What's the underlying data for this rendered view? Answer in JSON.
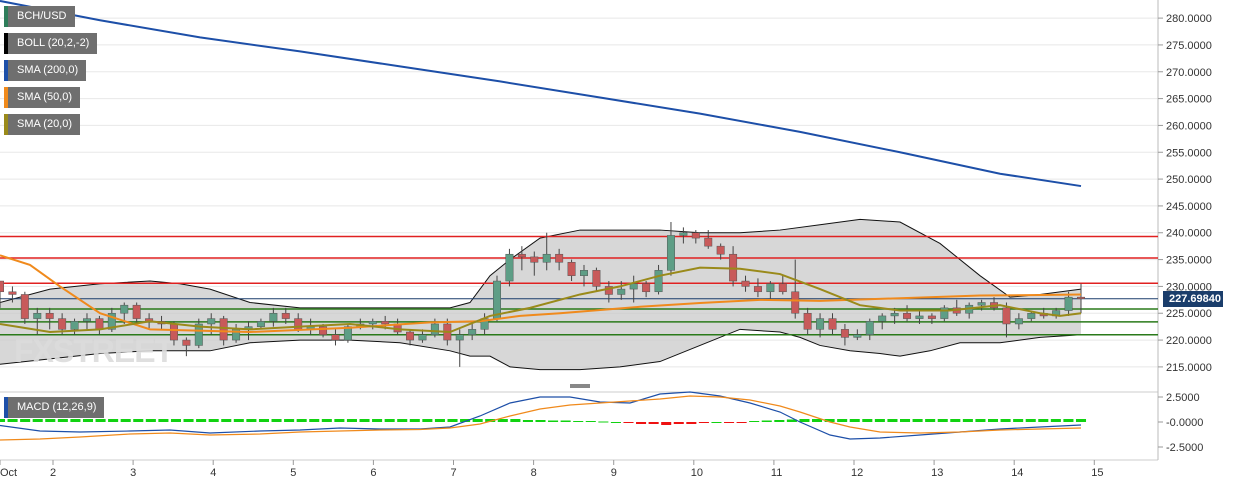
{
  "legend": [
    {
      "label": "BCH/USD",
      "color": "#2e7d5a"
    },
    {
      "label": "BOLL (20,2,-2)",
      "color": "#000000"
    },
    {
      "label": "SMA (200,0)",
      "color": "#1d4fa8"
    },
    {
      "label": "SMA (50,0)",
      "color": "#f08a1c"
    },
    {
      "label": "SMA (20,0)",
      "color": "#9a8a1a"
    }
  ],
  "macd_label": "MACD (12,26,9)",
  "watermark": "FXSTREET",
  "current_price": "227.69840",
  "x_labels": [
    "Oct",
    "2",
    "3",
    "4",
    "5",
    "6",
    "7",
    "8",
    "9",
    "10",
    "11",
    "12",
    "13",
    "14",
    "15"
  ],
  "y_labels": [
    "280.0000",
    "275.0000",
    "270.0000",
    "265.0000",
    "260.0000",
    "255.0000",
    "250.0000",
    "245.0000",
    "240.0000",
    "235.0000",
    "230.0000",
    "225.0000",
    "220.0000",
    "215.0000"
  ],
  "macd_y_labels": [
    "2.5000",
    "-0.0000",
    "-2.5000"
  ],
  "chart_data": {
    "type": "candlestick",
    "title": "BCH/USD",
    "ylim": [
      212,
      283
    ],
    "macd_ylim": [
      -3.6,
      3.0
    ],
    "colors": {
      "up": "#5e9e86",
      "down": "#c85a5a",
      "sma200": "#1d4fa8",
      "sma50": "#f08a1c",
      "sma20": "#9a8a1a",
      "boll_fill": "#c9c9c9",
      "boll_line": "#111111",
      "resistance": "#e02020",
      "support": "#2a7a1a",
      "macd_line": "#1d4fa8",
      "signal_line": "#f08a1c",
      "hist_up": "#11d211",
      "hist_down": "#ee1111"
    },
    "horizontal_levels": {
      "resistance": [
        239.3,
        235.3,
        230.6
      ],
      "support": [
        225.8,
        223.4,
        221.0
      ],
      "current": 227.6984
    },
    "candles": [
      [
        231,
        231,
        226,
        229
      ],
      [
        229,
        230,
        227,
        228.5
      ],
      [
        228.5,
        229,
        223,
        224
      ],
      [
        224,
        226,
        221,
        225
      ],
      [
        225,
        226,
        222,
        224
      ],
      [
        224,
        225,
        221,
        222
      ],
      [
        222,
        224,
        221,
        223.5
      ],
      [
        223.5,
        225,
        222,
        224
      ],
      [
        224,
        224.5,
        221,
        222
      ],
      [
        222,
        226,
        221.5,
        225
      ],
      [
        225,
        227,
        223,
        226.5
      ],
      [
        226.5,
        227,
        223,
        224
      ],
      [
        224,
        225,
        222,
        223.5
      ],
      [
        223.5,
        224.5,
        222,
        223
      ],
      [
        223,
        223.5,
        219,
        220
      ],
      [
        220,
        220.5,
        217,
        219
      ],
      [
        219,
        224,
        218.5,
        223
      ],
      [
        223,
        225,
        221,
        224
      ],
      [
        224,
        224.5,
        219,
        220
      ],
      [
        220,
        223,
        219.5,
        222
      ],
      [
        222,
        223.5,
        220,
        222.5
      ],
      [
        222.5,
        224,
        222,
        223.5
      ],
      [
        223.5,
        226,
        222.5,
        225
      ],
      [
        225,
        226,
        223,
        224
      ],
      [
        224,
        225,
        221.5,
        222
      ],
      [
        222,
        224,
        221,
        222.5
      ],
      [
        222.5,
        223,
        220.5,
        221
      ],
      [
        221,
        222,
        219,
        220
      ],
      [
        220,
        223,
        219.5,
        222.5
      ],
      [
        222.5,
        224,
        222,
        223
      ],
      [
        223,
        224,
        222,
        223.5
      ],
      [
        223.5,
        224.5,
        222,
        223
      ],
      [
        223,
        224,
        221,
        221.5
      ],
      [
        221.5,
        222,
        219,
        220
      ],
      [
        220,
        222,
        219.5,
        221
      ],
      [
        221,
        224,
        220.5,
        223
      ],
      [
        223,
        224,
        219,
        220
      ],
      [
        220,
        222,
        215,
        221
      ],
      [
        221,
        223,
        220,
        222
      ],
      [
        222,
        225,
        221,
        224
      ],
      [
        224,
        232,
        223.5,
        231
      ],
      [
        231,
        237,
        230,
        236
      ],
      [
        236,
        237.5,
        233,
        235.5
      ],
      [
        235.5,
        236.5,
        232,
        234.5
      ],
      [
        234.5,
        240,
        233,
        236
      ],
      [
        236,
        237,
        233,
        234.5
      ],
      [
        234.5,
        235,
        231,
        232
      ],
      [
        232,
        234,
        230,
        233
      ],
      [
        233,
        233.5,
        229,
        230
      ],
      [
        230,
        231,
        227,
        228.5
      ],
      [
        228.5,
        231,
        227.5,
        229.5
      ],
      [
        229.5,
        232,
        227,
        230.5
      ],
      [
        230.5,
        231,
        228,
        229
      ],
      [
        229,
        234,
        228.5,
        233
      ],
      [
        233,
        242,
        232,
        239.5
      ],
      [
        239.5,
        241,
        238,
        240
      ],
      [
        240,
        240.5,
        238,
        239
      ],
      [
        239,
        240.5,
        237,
        237.5
      ],
      [
        237.5,
        238,
        235,
        236
      ],
      [
        236,
        237.5,
        230,
        231
      ],
      [
        231,
        232,
        229,
        230
      ],
      [
        230,
        231.5,
        228,
        229
      ],
      [
        229,
        231,
        227.5,
        230.5
      ],
      [
        230.5,
        232,
        228.5,
        229
      ],
      [
        229,
        235,
        224,
        225
      ],
      [
        225,
        226,
        221,
        222
      ],
      [
        222,
        225,
        220.5,
        224
      ],
      [
        224,
        225,
        221,
        222
      ],
      [
        222,
        223,
        219,
        220.5
      ],
      [
        220.5,
        222,
        220,
        221
      ],
      [
        221,
        224,
        220,
        223.5
      ],
      [
        223.5,
        225,
        222,
        224.5
      ],
      [
        224.5,
        226,
        223,
        225
      ],
      [
        225,
        226.5,
        223.5,
        224
      ],
      [
        224,
        225.5,
        223,
        224.5
      ],
      [
        224.5,
        225,
        223,
        224
      ],
      [
        224,
        226.5,
        223.5,
        226
      ],
      [
        226,
        227.5,
        224.5,
        225
      ],
      [
        225,
        227,
        224,
        226.5
      ],
      [
        226.5,
        227.5,
        225.5,
        227
      ],
      [
        227,
        228,
        225.5,
        226
      ],
      [
        226,
        227,
        220.5,
        223
      ],
      [
        223,
        225,
        222,
        224
      ],
      [
        224,
        225.5,
        223.5,
        225
      ],
      [
        225,
        226,
        224,
        224.5
      ],
      [
        224.5,
        226,
        224,
        225.5
      ],
      [
        225.5,
        229,
        224.5,
        228
      ],
      [
        228,
        230.5,
        225,
        227.7
      ]
    ],
    "sma200": [
      [
        0,
        283.2
      ],
      [
        100,
        279.6
      ],
      [
        200,
        276.4
      ],
      [
        300,
        273.8
      ],
      [
        400,
        271.0
      ],
      [
        500,
        268.2
      ],
      [
        600,
        265.2
      ],
      [
        700,
        262.2
      ],
      [
        800,
        258.8
      ],
      [
        900,
        255.0
      ],
      [
        1000,
        251.0
      ],
      [
        1081,
        248.7
      ]
    ],
    "sma50": [
      [
        0,
        235.8
      ],
      [
        30,
        234.0
      ],
      [
        60,
        230.0
      ],
      [
        100,
        225.0
      ],
      [
        150,
        222.0
      ],
      [
        250,
        221.5
      ],
      [
        350,
        222.3
      ],
      [
        430,
        223.3
      ],
      [
        480,
        223.5
      ],
      [
        520,
        224.5
      ],
      [
        560,
        225.0
      ],
      [
        640,
        226.2
      ],
      [
        700,
        226.9
      ],
      [
        760,
        227.5
      ],
      [
        820,
        227.3
      ],
      [
        900,
        227.8
      ],
      [
        980,
        228.3
      ],
      [
        1040,
        228.4
      ],
      [
        1081,
        228.5
      ]
    ],
    "sma20": [
      [
        0,
        223.0
      ],
      [
        50,
        221.5
      ],
      [
        100,
        222.0
      ],
      [
        150,
        223.5
      ],
      [
        200,
        222.5
      ],
      [
        250,
        222.0
      ],
      [
        300,
        222.5
      ],
      [
        350,
        223.0
      ],
      [
        400,
        222.0
      ],
      [
        450,
        221.5
      ],
      [
        490,
        224.5
      ],
      [
        530,
        226.0
      ],
      [
        580,
        228.5
      ],
      [
        620,
        230.0
      ],
      [
        660,
        232.0
      ],
      [
        700,
        233.5
      ],
      [
        740,
        233.3
      ],
      [
        780,
        232.3
      ],
      [
        820,
        229.5
      ],
      [
        860,
        226.5
      ],
      [
        900,
        225.5
      ],
      [
        950,
        225.5
      ],
      [
        1000,
        226.5
      ],
      [
        1040,
        225.0
      ],
      [
        1060,
        224.5
      ],
      [
        1081,
        225.0
      ]
    ],
    "boll_upper": [
      [
        0,
        227.0
      ],
      [
        50,
        229.5
      ],
      [
        100,
        230.5
      ],
      [
        150,
        231.0
      ],
      [
        180,
        230.5
      ],
      [
        210,
        229.5
      ],
      [
        250,
        227.0
      ],
      [
        300,
        226.0
      ],
      [
        350,
        226.0
      ],
      [
        400,
        226.0
      ],
      [
        450,
        226.0
      ],
      [
        470,
        227.0
      ],
      [
        490,
        232.0
      ],
      [
        510,
        235.0
      ],
      [
        540,
        239.0
      ],
      [
        580,
        240.5
      ],
      [
        620,
        240.5
      ],
      [
        660,
        240.5
      ],
      [
        700,
        240.0
      ],
      [
        740,
        240.0
      ],
      [
        780,
        240.5
      ],
      [
        820,
        241.5
      ],
      [
        860,
        242.5
      ],
      [
        900,
        242.0
      ],
      [
        940,
        238.0
      ],
      [
        980,
        232.0
      ],
      [
        1010,
        228.0
      ],
      [
        1040,
        228.5
      ],
      [
        1081,
        229.5
      ]
    ],
    "boll_lower": [
      [
        0,
        215.5
      ],
      [
        50,
        216.5
      ],
      [
        100,
        217.5
      ],
      [
        150,
        218.0
      ],
      [
        180,
        218.0
      ],
      [
        210,
        218.0
      ],
      [
        250,
        219.5
      ],
      [
        300,
        220.0
      ],
      [
        350,
        220.0
      ],
      [
        400,
        219.5
      ],
      [
        450,
        218.0
      ],
      [
        470,
        217.0
      ],
      [
        490,
        217.0
      ],
      [
        510,
        215.0
      ],
      [
        540,
        214.5
      ],
      [
        580,
        214.5
      ],
      [
        620,
        215.0
      ],
      [
        660,
        216.0
      ],
      [
        700,
        219.0
      ],
      [
        740,
        222.0
      ],
      [
        780,
        221.5
      ],
      [
        800,
        220.5
      ],
      [
        820,
        219.0
      ],
      [
        850,
        218.0
      ],
      [
        880,
        217.5
      ],
      [
        900,
        217.0
      ],
      [
        930,
        218.0
      ],
      [
        960,
        219.5
      ],
      [
        1000,
        219.5
      ],
      [
        1040,
        220.5
      ],
      [
        1081,
        221.0
      ]
    ],
    "macd": [
      [
        0,
        -0.35
      ],
      [
        40,
        -0.9
      ],
      [
        80,
        -1.0
      ],
      [
        130,
        -0.9
      ],
      [
        170,
        -0.8
      ],
      [
        210,
        -1.1
      ],
      [
        260,
        -0.9
      ],
      [
        300,
        -0.8
      ],
      [
        340,
        -0.6
      ],
      [
        380,
        -0.7
      ],
      [
        420,
        -0.7
      ],
      [
        450,
        -0.5
      ],
      [
        480,
        0.6
      ],
      [
        510,
        1.9
      ],
      [
        540,
        2.5
      ],
      [
        570,
        2.5
      ],
      [
        600,
        2.0
      ],
      [
        630,
        1.9
      ],
      [
        660,
        2.8
      ],
      [
        690,
        3.0
      ],
      [
        720,
        2.6
      ],
      [
        750,
        1.9
      ],
      [
        780,
        1.0
      ],
      [
        800,
        0.0
      ],
      [
        830,
        -1.3
      ],
      [
        850,
        -1.7
      ],
      [
        880,
        -1.6
      ],
      [
        920,
        -1.3
      ],
      [
        960,
        -1.0
      ],
      [
        1000,
        -0.7
      ],
      [
        1040,
        -0.5
      ],
      [
        1081,
        -0.3
      ]
    ],
    "signal": [
      [
        0,
        -1.8
      ],
      [
        40,
        -1.7
      ],
      [
        80,
        -1.5
      ],
      [
        130,
        -1.2
      ],
      [
        170,
        -1.1
      ],
      [
        210,
        -1.3
      ],
      [
        260,
        -1.2
      ],
      [
        300,
        -1.0
      ],
      [
        340,
        -0.9
      ],
      [
        380,
        -0.8
      ],
      [
        420,
        -0.75
      ],
      [
        450,
        -0.6
      ],
      [
        480,
        -0.2
      ],
      [
        510,
        0.6
      ],
      [
        540,
        1.3
      ],
      [
        570,
        1.7
      ],
      [
        600,
        1.9
      ],
      [
        630,
        2.1
      ],
      [
        660,
        2.3
      ],
      [
        690,
        2.6
      ],
      [
        720,
        2.5
      ],
      [
        750,
        2.2
      ],
      [
        780,
        1.6
      ],
      [
        800,
        1.0
      ],
      [
        830,
        0.0
      ],
      [
        850,
        -0.5
      ],
      [
        880,
        -1.0
      ],
      [
        920,
        -1.1
      ],
      [
        960,
        -1.0
      ],
      [
        1000,
        -0.8
      ],
      [
        1040,
        -0.7
      ],
      [
        1081,
        -0.6
      ]
    ],
    "macd_hist": [
      0.3,
      0.3,
      0.3,
      0.3,
      0.3,
      0.3,
      0.3,
      0.3,
      0.3,
      0.3,
      0.3,
      0.3,
      0.3,
      0.3,
      0.3,
      0.3,
      0.3,
      0.3,
      0.3,
      0.3,
      0.3,
      0.3,
      0.3,
      0.3,
      0.3,
      0.3,
      0.3,
      0.3,
      0.3,
      0.3,
      0.3,
      0.3,
      0.3,
      0.3,
      0.3,
      0.3,
      0.3,
      0.3,
      0.3,
      0.3,
      0.3,
      0.3,
      0.2,
      0.2,
      0.15,
      0.15,
      0.1,
      0.1,
      0.05,
      0.0,
      -0.1,
      -0.2,
      -0.2,
      -0.3,
      -0.2,
      -0.2,
      -0.1,
      0.0,
      -0.1,
      -0.1,
      0.1,
      0.15,
      0.2,
      0.25,
      0.3,
      0.3,
      0.3,
      0.3,
      0.3,
      0.3,
      0.3,
      0.3,
      0.3,
      0.3,
      0.3,
      0.3,
      0.3,
      0.3,
      0.3,
      0.3,
      0.3,
      0.3,
      0.3,
      0.3,
      0.3,
      0.3,
      0.3
    ]
  }
}
